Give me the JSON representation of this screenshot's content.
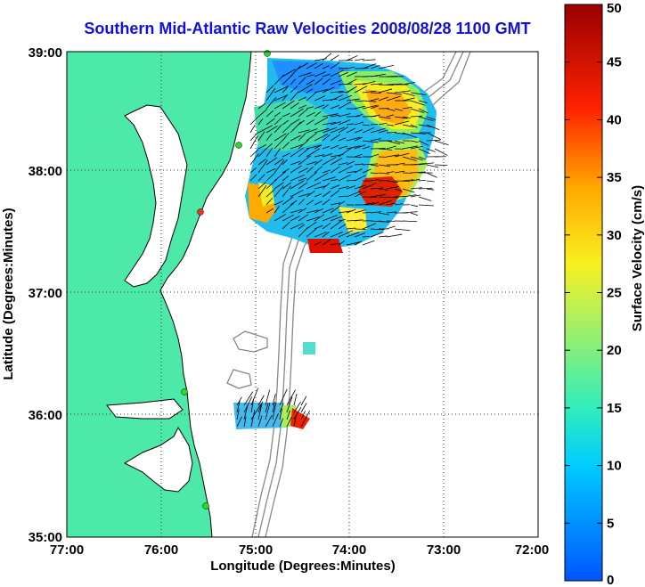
{
  "title": "Southern Mid-Atlantic Raw Velocities 2008/08/28 1100 GMT",
  "xlabel": "Longitude (Degrees:Minutes)",
  "ylabel": "Latitude (Degrees:Minutes)",
  "x_ticks": [
    "77:00",
    "76:00",
    "75:00",
    "74:00",
    "73:00",
    "72:00"
  ],
  "y_ticks": [
    "39:00",
    "38:00",
    "37:00",
    "36:00",
    "35:00"
  ],
  "colorbar": {
    "label": "Surface Velocity (cm/s)",
    "ticks": [
      "0",
      "5",
      "10",
      "15",
      "20",
      "25",
      "30",
      "35",
      "40",
      "45",
      "50"
    ],
    "range": [
      0,
      50
    ]
  },
  "colors": {
    "land": "#4de9a8",
    "water": "#ffffff",
    "title": "#1010e0",
    "station": "#22dd22",
    "station_alt": "#ee3322"
  }
}
